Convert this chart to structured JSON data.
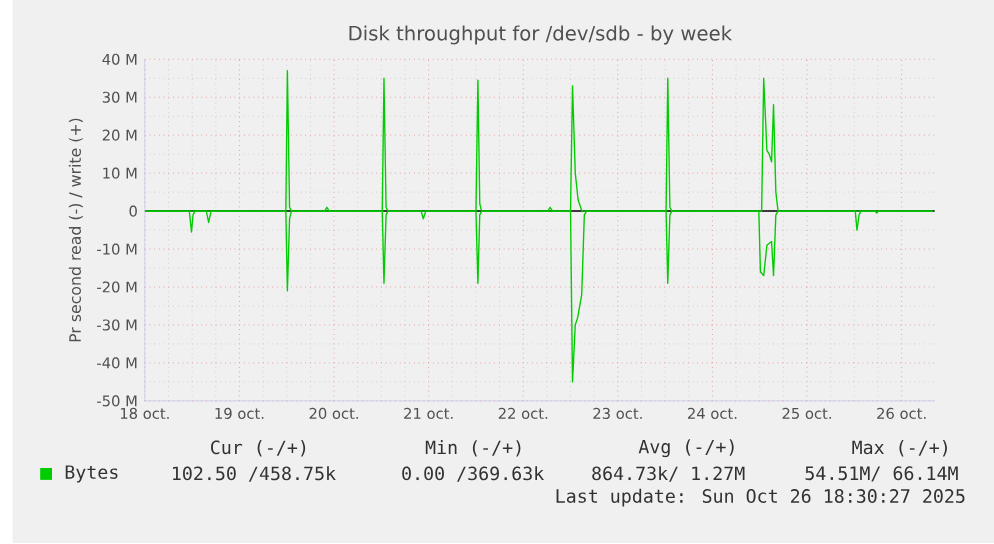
{
  "chart_data": {
    "type": "line",
    "title": "Disk throughput for /dev/sdb - by week",
    "ylabel": "Pr second read (-) / write (+)",
    "xlim": [
      "2025-10-18T00:00",
      "2025-10-26T08:24"
    ],
    "ylim": [
      -50,
      40
    ],
    "xticks": [
      {
        "value": "2025-10-18",
        "label": "18 oct."
      },
      {
        "value": "2025-10-19",
        "label": "19 oct."
      },
      {
        "value": "2025-10-20",
        "label": "20 oct."
      },
      {
        "value": "2025-10-21",
        "label": "21 oct."
      },
      {
        "value": "2025-10-22",
        "label": "22 oct."
      },
      {
        "value": "2025-10-23",
        "label": "23 oct."
      },
      {
        "value": "2025-10-24",
        "label": "24 oct."
      },
      {
        "value": "2025-10-25",
        "label": "25 oct."
      },
      {
        "value": "2025-10-26",
        "label": "26 oct."
      }
    ],
    "yticks": [
      {
        "value": 40,
        "label": "40 M"
      },
      {
        "value": 30,
        "label": "30 M"
      },
      {
        "value": 20,
        "label": "20 M"
      },
      {
        "value": 10,
        "label": "10 M"
      },
      0,
      {
        "value": -10,
        "label": "-10 M"
      },
      {
        "value": -20,
        "label": "-20 M"
      },
      {
        "value": -30,
        "label": "-30 M"
      },
      {
        "value": -40,
        "label": "-40 M"
      },
      {
        "value": -50,
        "label": "-50 M"
      }
    ],
    "grid": true,
    "legend": "bottom",
    "series": [
      {
        "name": "Bytes",
        "color": "#00cc00",
        "x": [
          "2025-10-18T00:00",
          "2025-10-19T11:46",
          "2025-10-19T12:10",
          "2025-10-19T12:43",
          "2025-10-19T13:12",
          "2025-10-19T21:36",
          "2025-10-19T22:11",
          "2025-10-19T22:48",
          "2025-10-20T12:14",
          "2025-10-20T12:40",
          "2025-10-20T13:12",
          "2025-10-20T13:41",
          "2025-10-21T12:00",
          "2025-10-21T12:30",
          "2025-10-21T12:58",
          "2025-10-21T13:26",
          "2025-10-22T06:14",
          "2025-10-22T06:50",
          "2025-10-22T07:26",
          "2025-10-22T12:00",
          "2025-10-22T12:30",
          "2025-10-22T13:12",
          "2025-10-22T13:55",
          "2025-10-22T14:53",
          "2025-10-23T12:14",
          "2025-10-23T12:40",
          "2025-10-23T13:12",
          "2025-10-23T13:41",
          "2025-10-24T12:29",
          "2025-10-24T13:00",
          "2025-10-24T13:26",
          "2025-10-24T13:49",
          "2025-10-24T14:24",
          "2025-10-24T15:00",
          "2025-10-24T15:30",
          "2025-10-24T16:05",
          "2025-10-24T16:39",
          "2025-10-26T07:55"
        ],
        "values": [
          0,
          0,
          37,
          1,
          0,
          0,
          1,
          0,
          0,
          35,
          1,
          0,
          0,
          34.5,
          2,
          0,
          0,
          1,
          0,
          0,
          33,
          10,
          3,
          0,
          0,
          35,
          1,
          0,
          0,
          35,
          25,
          16,
          15,
          13,
          28,
          5,
          0,
          0
        ]
      },
      {
        "color": "#00cc00",
        "x": [
          "2025-10-18T00:00",
          "2025-10-18T11:17",
          "2025-10-18T11:50",
          "2025-10-18T12:14",
          "2025-10-18T12:43",
          "2025-10-18T15:36",
          "2025-10-18T16:11",
          "2025-10-18T16:48",
          "2025-10-19T11:46",
          "2025-10-19T12:10",
          "2025-10-19T12:43",
          "2025-10-19T13:12",
          "2025-10-20T12:14",
          "2025-10-20T12:40",
          "2025-10-20T13:12",
          "2025-10-20T13:41",
          "2025-10-20T22:05",
          "2025-10-20T22:39",
          "2025-10-20T23:17",
          "2025-10-21T12:00",
          "2025-10-21T12:30",
          "2025-10-21T12:58",
          "2025-10-21T13:26",
          "2025-10-22T12:00",
          "2025-10-22T12:30",
          "2025-10-22T13:12",
          "2025-10-22T13:49",
          "2025-10-22T14:50",
          "2025-10-22T15:30",
          "2025-10-22T16:05",
          "2025-10-23T12:14",
          "2025-10-23T12:40",
          "2025-10-23T13:12",
          "2025-10-23T13:41",
          "2025-10-24T11:46",
          "2025-10-24T12:10",
          "2025-10-24T13:00",
          "2025-10-24T13:49",
          "2025-10-24T15:00",
          "2025-10-24T15:30",
          "2025-10-24T16:05",
          "2025-10-24T16:39",
          "2025-10-25T12:14",
          "2025-10-25T12:40",
          "2025-10-25T13:12",
          "2025-10-25T13:41",
          "2025-10-25T17:17",
          "2025-10-25T17:40",
          "2025-10-25T18:14",
          "2025-10-26T07:55"
        ],
        "values": [
          0,
          0,
          -5.5,
          -1,
          0,
          0,
          -3,
          0,
          0,
          -21,
          -2,
          0,
          0,
          -19,
          -1,
          0,
          0,
          -2,
          0,
          0,
          -19,
          -1,
          0,
          0,
          -45,
          -30,
          -28,
          -22,
          -1,
          0,
          0,
          -19,
          -1,
          0,
          0,
          -16,
          -17,
          -9,
          -8,
          -17,
          -1,
          0,
          0,
          -5,
          -1,
          0,
          0,
          -0.5,
          0,
          0
        ]
      }
    ],
    "ref_lines": [
      {
        "axis": "y",
        "value": 0,
        "color": "#000000"
      }
    ],
    "annotations": [
      "Cur (-/+)",
      "Min (-/+)",
      "Avg (-/+)",
      "Max (-/+)",
      "102.50 /458.75k",
      "0.00 /369.63k",
      "864.73k/  1.27M",
      "54.51M/ 66.14M",
      "Last update: Sun Oct 26 18:30:27 2025"
    ]
  }
}
